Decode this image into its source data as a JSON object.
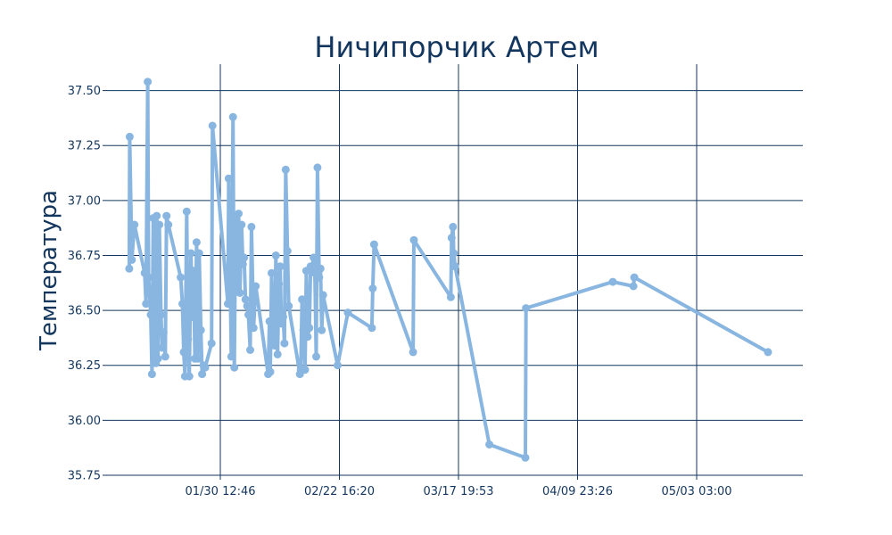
{
  "chart_data": {
    "type": "line",
    "title": "Ничипорчик Артем",
    "xlabel": "",
    "ylabel": "Температура",
    "x_ticks": [
      "01/30 12:46",
      "02/22 16:20",
      "03/17 19:53",
      "04/09 23:26",
      "05/03 03:00"
    ],
    "y_ticks": [
      "35.75",
      "36.00",
      "36.25",
      "36.50",
      "36.75",
      "37.00",
      "37.25",
      "37.50"
    ],
    "ylim": [
      35.75,
      37.62
    ],
    "grid": true,
    "color": "#89b6e1",
    "series": [
      {
        "x": [
          "01/12 20:00",
          "01/12 22:00",
          "01/13 08:00",
          "01/13 20:00",
          "01/15 20:00",
          "01/16 02:00",
          "01/16 10:00",
          "01/16 14:00",
          "01/17 00:00",
          "01/17 06:00",
          "01/17 12:00",
          "01/18 00:00",
          "01/18 04:00",
          "01/18 10:00",
          "01/18 16:00",
          "01/19 00:00",
          "01/19 06:00",
          "01/19 12:00",
          "01/19 20:00",
          "01/20 02:00",
          "01/20 10:00",
          "01/22 20:00",
          "01/23 04:00",
          "01/23 10:00",
          "01/23 16:00",
          "01/24 00:00",
          "01/24 06:00",
          "01/24 12:00",
          "01/24 20:00",
          "01/25 02:00",
          "01/25 08:00",
          "01/25 14:00",
          "01/25 22:00",
          "01/26 04:00",
          "01/26 10:00",
          "01/26 18:00",
          "01/27 00:00",
          "01/27 06:00",
          "01/27 14:00",
          "01/28 20:00",
          "01/29 00:00",
          "02/01 00:00",
          "02/01 04:00",
          "02/01 10:00",
          "02/01 16:00",
          "02/02 00:00",
          "02/02 06:00",
          "02/02 12:00",
          "02/02 20:00",
          "02/03 02:00",
          "02/03 08:00",
          "02/03 16:00",
          "02/03 22:00",
          "02/04 04:00",
          "02/04 10:00",
          "02/04 18:00",
          "02/05 00:00",
          "02/05 08:00",
          "02/05 14:00",
          "02/06 00:00",
          "02/06 10:00",
          "02/08 20:00",
          "02/09 02:00",
          "02/09 06:00",
          "02/09 12:00",
          "02/09 20:00",
          "02/10 02:00",
          "02/10 08:00",
          "02/10 16:00",
          "02/10 22:00",
          "02/11 04:00",
          "02/11 10:00",
          "02/11 18:00",
          "02/12 00:00",
          "02/12 06:00",
          "02/12 14:00",
          "02/12 20:00",
          "02/15 00:00",
          "02/15 04:00",
          "02/15 10:00",
          "02/15 16:00",
          "02/16 00:00",
          "02/16 06:00",
          "02/16 12:00",
          "02/16 20:00",
          "02/17 02:00",
          "02/17 08:00",
          "02/17 16:00",
          "02/17 22:00",
          "02/18 04:00",
          "02/18 10:00",
          "02/18 18:00",
          "02/19 00:00",
          "02/19 06:00",
          "02/19 12:00",
          "02/22 08:00",
          "02/24 08:00",
          "03/01 00:00",
          "03/01 04:00",
          "03/01 10:00",
          "03/09 00:00",
          "03/09 04:00",
          "03/16 08:00",
          "03/16 12:00",
          "03/16 18:00",
          "03/16 22:00",
          "03/17 04:00",
          "03/23 20:00",
          "03/30 20:00",
          "03/30 23:00",
          "04/16 20:00",
          "04/20 20:00",
          "04/21 00:00",
          "05/17 00:00"
        ],
        "values": [
          36.69,
          37.29,
          36.73,
          36.89,
          36.67,
          36.53,
          37.54,
          36.65,
          36.48,
          36.21,
          36.92,
          36.26,
          36.93,
          36.28,
          36.89,
          36.48,
          36.33,
          36.4,
          36.29,
          36.93,
          36.89,
          36.65,
          36.53,
          36.31,
          36.2,
          36.95,
          36.37,
          36.2,
          36.76,
          36.47,
          36.68,
          36.28,
          36.81,
          36.28,
          36.76,
          36.41,
          36.21,
          36.25,
          36.24,
          36.35,
          37.34,
          36.53,
          37.1,
          36.7,
          36.29,
          37.38,
          36.24,
          36.92,
          36.6,
          36.94,
          36.58,
          36.89,
          36.71,
          36.74,
          36.55,
          36.52,
          36.48,
          36.32,
          36.88,
          36.42,
          36.61,
          36.21,
          36.45,
          36.22,
          36.67,
          36.36,
          36.34,
          36.75,
          36.3,
          36.62,
          36.7,
          36.44,
          36.47,
          36.35,
          37.14,
          36.77,
          36.52,
          36.21,
          36.23,
          36.55,
          36.41,
          36.23,
          36.68,
          36.38,
          36.42,
          36.7,
          36.69,
          36.74,
          36.67,
          36.29,
          37.15,
          36.65,
          36.69,
          36.41,
          36.57,
          36.25,
          36.49,
          36.42,
          36.6,
          36.8,
          36.31,
          36.82,
          36.56,
          36.83,
          36.88,
          36.76,
          36.7,
          35.89,
          35.83,
          36.51,
          36.63,
          36.61,
          36.65,
          36.31
        ]
      }
    ]
  }
}
